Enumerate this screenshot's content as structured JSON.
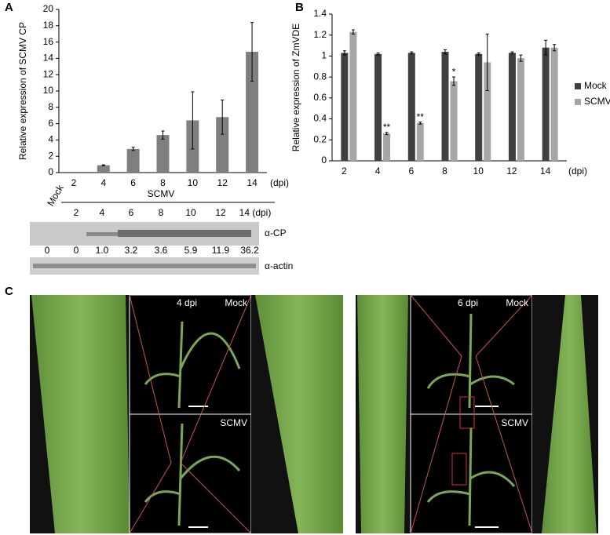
{
  "chart_data": [
    {
      "type": "bar",
      "panel": "A",
      "y_label": "Relative expression of SCMV CP",
      "x_label": "(dpi)",
      "categories": [
        "2",
        "4",
        "6",
        "8",
        "10",
        "12",
        "14"
      ],
      "series": [
        {
          "name": "SCMV",
          "color": "#7f7f7f",
          "values": [
            0,
            0.9,
            2.9,
            4.6,
            6.4,
            6.8,
            14.8
          ],
          "errors": [
            0,
            0.05,
            0.2,
            0.5,
            3.5,
            2.1,
            3.6
          ]
        }
      ],
      "ylim": [
        0,
        20
      ],
      "yticks": [
        0,
        2,
        4,
        6,
        8,
        10,
        12,
        14,
        16,
        18,
        20
      ],
      "legend": false
    },
    {
      "type": "bar",
      "panel": "B",
      "y_label": "Relative expression of ZmVDE",
      "x_label": "(dpi)",
      "categories": [
        "2",
        "4",
        "6",
        "8",
        "10",
        "12",
        "14"
      ],
      "series": [
        {
          "name": "Mock",
          "color": "#404040",
          "values": [
            1.03,
            1.02,
            1.03,
            1.04,
            1.02,
            1.03,
            1.08
          ],
          "errors": [
            0.02,
            0.01,
            0.01,
            0.02,
            0.01,
            0.01,
            0.07
          ]
        },
        {
          "name": "SCMV",
          "color": "#a6a6a6",
          "values": [
            1.23,
            0.26,
            0.36,
            0.76,
            0.94,
            0.98,
            1.08
          ],
          "errors": [
            0.02,
            0.01,
            0.01,
            0.04,
            0.27,
            0.03,
            0.03
          ],
          "significance": [
            null,
            "**",
            "**",
            "*",
            null,
            null,
            null
          ]
        }
      ],
      "ylim": [
        0,
        1.4
      ],
      "yticks": [
        0,
        0.2,
        0.4,
        0.6,
        0.8,
        1,
        1.2,
        1.4
      ],
      "legend": "right"
    }
  ],
  "blot": {
    "mock": "Mock",
    "group": "SCMV",
    "lanes": [
      "2",
      "4",
      "6",
      "8",
      "10",
      "12",
      "14 (dpi)"
    ],
    "antibodies": [
      "α-CP",
      "α-actin"
    ],
    "quantities": [
      "0",
      "0",
      "1.0",
      "3.2",
      "3.6",
      "5.9",
      "11.9",
      "36.2"
    ]
  },
  "photos": {
    "panel": "C",
    "left": {
      "time": "4 dpi",
      "top": "Mock",
      "bottom": "SCMV"
    },
    "right": {
      "time": "6 dpi",
      "top": "Mock",
      "bottom": "SCMV"
    }
  }
}
